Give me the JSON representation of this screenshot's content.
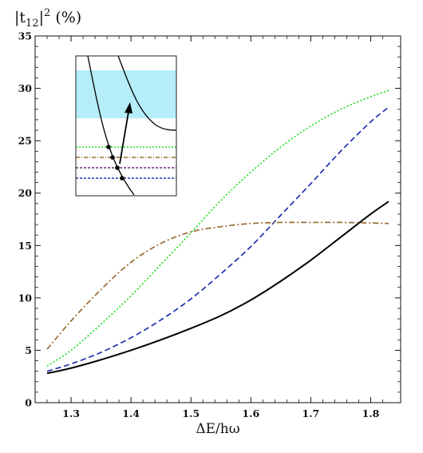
{
  "chart_data": {
    "type": "line",
    "title": "",
    "ylabel": "|t12|² (%)",
    "ylabel_parts": {
      "pre": "|t",
      "sub": "12",
      "mid": "|",
      "sup": "2",
      "post": " (%)"
    },
    "xlabel": "ΔE/hω",
    "xlim": [
      1.24,
      1.85
    ],
    "ylim": [
      0,
      35
    ],
    "xticks": [
      1.3,
      1.4,
      1.5,
      1.6,
      1.7,
      1.8
    ],
    "xtick_labels": [
      "1.3",
      "1.4",
      "1.5",
      "1.6",
      "1.7",
      "1.8"
    ],
    "yticks": [
      0,
      5,
      10,
      15,
      20,
      25,
      30,
      35
    ],
    "ytick_labels": [
      "0",
      "5",
      "10",
      "15",
      "20",
      "25",
      "30",
      "35"
    ],
    "grid": false,
    "legend": "none",
    "series": [
      {
        "style": "solid",
        "color": "#000000",
        "x": [
          1.26,
          1.3,
          1.35,
          1.4,
          1.45,
          1.5,
          1.55,
          1.6,
          1.65,
          1.7,
          1.75,
          1.8,
          1.83
        ],
        "values": [
          2.8,
          3.3,
          4.1,
          5.0,
          6.0,
          7.1,
          8.3,
          9.8,
          11.6,
          13.6,
          15.8,
          18.0,
          19.2
        ]
      },
      {
        "style": "dashed",
        "color": "#1f2fb0",
        "x": [
          1.26,
          1.3,
          1.35,
          1.4,
          1.45,
          1.5,
          1.55,
          1.6,
          1.65,
          1.7,
          1.75,
          1.8,
          1.83
        ],
        "values": [
          3.0,
          3.7,
          4.8,
          6.2,
          7.9,
          9.9,
          12.3,
          14.9,
          17.9,
          20.9,
          24.0,
          26.8,
          28.2
        ]
      },
      {
        "style": "dotted",
        "color": "#22dd22",
        "x": [
          1.26,
          1.3,
          1.35,
          1.4,
          1.45,
          1.5,
          1.55,
          1.6,
          1.65,
          1.7,
          1.75,
          1.8,
          1.83
        ],
        "values": [
          3.5,
          5.0,
          7.5,
          10.2,
          13.2,
          16.2,
          19.3,
          22.0,
          24.4,
          26.4,
          28.0,
          29.2,
          29.8
        ]
      },
      {
        "style": "dash-dot",
        "color": "#9b6a34",
        "x": [
          1.26,
          1.3,
          1.35,
          1.4,
          1.45,
          1.5,
          1.55,
          1.6,
          1.65,
          1.7,
          1.75,
          1.8,
          1.83
        ],
        "values": [
          5.1,
          7.8,
          10.8,
          13.4,
          15.2,
          16.3,
          16.8,
          17.1,
          17.2,
          17.2,
          17.2,
          17.15,
          17.1
        ]
      }
    ],
    "inset": {
      "band_color": "#b5edf9",
      "dashed_levels": [
        {
          "color": "#22dd22",
          "style": "dotted"
        },
        {
          "color": "#9b6a34",
          "style": "dash-dot"
        },
        {
          "color": "#6a2a7a",
          "style": "dashed"
        },
        {
          "color": "#1f2fb0",
          "style": "dashed"
        }
      ]
    }
  }
}
